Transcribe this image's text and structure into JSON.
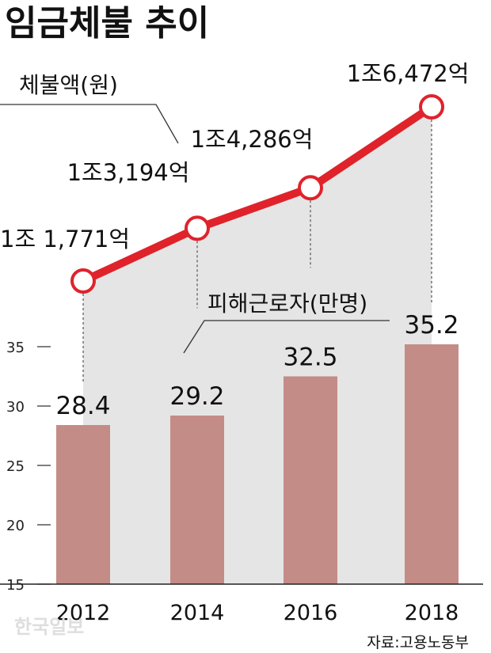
{
  "title": "임금체불 추이",
  "source": "자료:고용노동부",
  "watermark": "한국일보",
  "colors": {
    "bar": "#c48c86",
    "line": "#e0222b",
    "marker_fill": "#ffffff",
    "area": "#e5e5e5"
  },
  "chart_data": {
    "type": "bar",
    "categories": [
      "2012",
      "2014",
      "2016",
      "2018"
    ],
    "series": [
      {
        "name": "피해근로자(만명)",
        "type": "bar",
        "values": [
          28.4,
          29.2,
          32.5,
          35.2
        ],
        "labels": [
          "28.4",
          "29.2",
          "32.5",
          "35.2"
        ]
      },
      {
        "name": "체불액(원)",
        "type": "line",
        "values": [
          1177100000000,
          1319400000000,
          1428600000000,
          1647200000000
        ],
        "labels": [
          "1조 1,771억",
          "1조3,194억",
          "1조4,286억",
          "1조6,472억"
        ]
      }
    ],
    "y_ticks": [
      "35",
      "30",
      "25",
      "20",
      "15"
    ],
    "ylim": [
      15,
      36.5
    ],
    "grid": false
  }
}
